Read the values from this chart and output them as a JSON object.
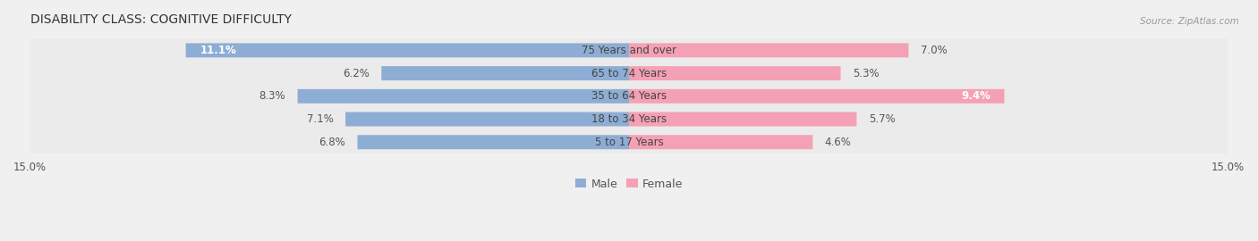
{
  "title": "DISABILITY CLASS: COGNITIVE DIFFICULTY",
  "source": "Source: ZipAtlas.com",
  "categories": [
    "5 to 17 Years",
    "18 to 34 Years",
    "35 to 64 Years",
    "65 to 74 Years",
    "75 Years and over"
  ],
  "male_values": [
    6.8,
    7.1,
    8.3,
    6.2,
    11.1
  ],
  "female_values": [
    4.6,
    5.7,
    9.4,
    5.3,
    7.0
  ],
  "max_val": 15.0,
  "male_color": "#8eadd4",
  "female_color": "#f4a0b5",
  "title_fontsize": 10,
  "label_fontsize": 8.5,
  "value_fontsize": 8.5,
  "axis_fontsize": 8.5,
  "legend_fontsize": 9
}
